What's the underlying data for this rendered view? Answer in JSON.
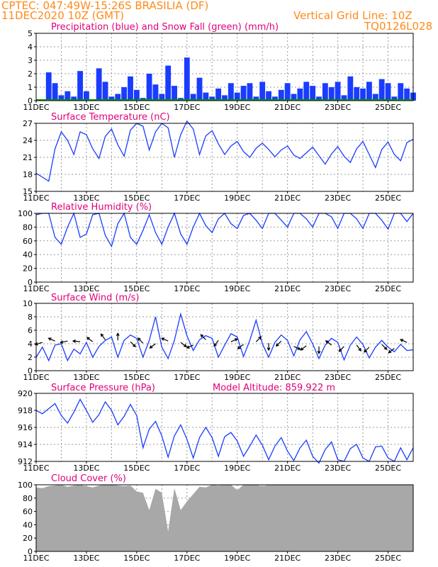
{
  "header": {
    "line1_left": "CPTEC:   047:49W-15:26S   BRASILIA (DF)",
    "line2_left": "11DEC2020 10Z (GMT)",
    "line2_right": "Vertical Grid Line: 10Z",
    "line3_right": "TQ0126L028"
  },
  "colors": {
    "header": "#ff8a1a",
    "title": "#e0007a",
    "series": "#1a3cff",
    "cloud": "#a8a8a8",
    "snow": "#00a000",
    "grid": "#9a9a9a"
  },
  "x_tick_labels": [
    "11DEC",
    "13DEC",
    "15DEC",
    "17DEC",
    "19DEC",
    "21DEC",
    "23DEC",
    "25DEC"
  ],
  "chart_data": [
    {
      "type": "bar",
      "title": "Precipitation (blue) and Snow Fall (green) (mm/h)",
      "ylim": [
        0,
        5
      ],
      "yticks": [
        "0",
        "1",
        "2",
        "3",
        "4",
        "5"
      ],
      "x_days": [
        0.0,
        0.25,
        0.5,
        0.75,
        1.0,
        1.25,
        1.5,
        1.75,
        2.0,
        2.25,
        2.5,
        2.75,
        3.0,
        3.25,
        3.5,
        3.75,
        4.0,
        4.25,
        4.5,
        4.75,
        5.0,
        5.25,
        5.5,
        5.75,
        6.0,
        6.25,
        6.5,
        6.75,
        7.0,
        7.25,
        7.5,
        7.75,
        8.0,
        8.25,
        8.5,
        8.75,
        9.0,
        9.25,
        9.5,
        9.75,
        10.0,
        10.25,
        10.5,
        10.75,
        11.0,
        11.25,
        11.5,
        11.75,
        12.0,
        12.25,
        12.5,
        12.75,
        13.0,
        13.25,
        13.5,
        13.75,
        14.0,
        14.25,
        14.5,
        14.75,
        15.0
      ],
      "precip": [
        0.1,
        0.0,
        2.1,
        1.3,
        0.4,
        0.7,
        0.3,
        2.2,
        0.7,
        0.1,
        2.4,
        1.4,
        0.3,
        0.5,
        1.0,
        1.8,
        0.8,
        0.2,
        2.0,
        1.2,
        0.5,
        2.6,
        1.1,
        0.2,
        3.2,
        0.5,
        1.7,
        0.6,
        0.3,
        0.9,
        0.4,
        1.3,
        0.6,
        1.1,
        1.3,
        0.3,
        1.4,
        0.7,
        0.3,
        0.8,
        1.3,
        0.5,
        0.9,
        1.4,
        1.1,
        0.3,
        1.3,
        1.0,
        1.4,
        0.4,
        1.8,
        1.0,
        0.9,
        1.4,
        0.5,
        1.6,
        1.3,
        0.3,
        1.3,
        0.9,
        0.6
      ],
      "snow": [
        0,
        0,
        0,
        0,
        0,
        0,
        0,
        0,
        0,
        0,
        0,
        0,
        0,
        0,
        0,
        0,
        0,
        0,
        0,
        0,
        0,
        0,
        0,
        0,
        0,
        0,
        0,
        0,
        0,
        0,
        0,
        0,
        0,
        0,
        0,
        0,
        0,
        0,
        0,
        0,
        0,
        0,
        0,
        0,
        0,
        0,
        0,
        0,
        0,
        0,
        0,
        0,
        0,
        0,
        0,
        0,
        0,
        0,
        0,
        0,
        0
      ]
    },
    {
      "type": "line",
      "title": "Surface Temperature (nC)",
      "ylim": [
        15,
        27
      ],
      "yticks": [
        "15",
        "18",
        "21",
        "24",
        "27"
      ],
      "x_days": [
        0.0,
        0.25,
        0.5,
        0.75,
        1.0,
        1.25,
        1.5,
        1.75,
        2.0,
        2.25,
        2.5,
        2.75,
        3.0,
        3.25,
        3.5,
        3.75,
        4.0,
        4.25,
        4.5,
        4.75,
        5.0,
        5.25,
        5.5,
        5.75,
        6.0,
        6.25,
        6.5,
        6.75,
        7.0,
        7.25,
        7.5,
        7.75,
        8.0,
        8.25,
        8.5,
        8.75,
        9.0,
        9.25,
        9.5,
        9.75,
        10.0,
        10.25,
        10.5,
        10.75,
        11.0,
        11.25,
        11.5,
        11.75,
        12.0,
        12.25,
        12.5,
        12.75,
        13.0,
        13.25,
        13.5,
        13.75,
        14.0,
        14.25,
        14.5,
        14.75,
        15.0
      ],
      "values": [
        18.2,
        17.5,
        16.8,
        22.5,
        25.5,
        24.0,
        21.5,
        25.5,
        25.0,
        22.5,
        20.8,
        24.7,
        26.0,
        23.2,
        21.2,
        25.8,
        27.0,
        26.5,
        22.3,
        25.5,
        27.0,
        26.2,
        21.0,
        25.0,
        27.4,
        26.0,
        21.5,
        24.8,
        25.7,
        23.4,
        21.5,
        23.0,
        23.8,
        22.0,
        21.0,
        22.6,
        23.5,
        22.4,
        21.1,
        22.3,
        23.0,
        21.4,
        20.8,
        21.8,
        22.8,
        21.3,
        19.8,
        21.6,
        22.9,
        21.2,
        20.1,
        22.5,
        23.8,
        21.5,
        19.2,
        22.4,
        23.7,
        21.5,
        20.4,
        23.6,
        24.2
      ]
    },
    {
      "type": "line",
      "title": "Relative Humidity (%)",
      "ylim": [
        0,
        100
      ],
      "yticks": [
        "0",
        "20",
        "40",
        "60",
        "80",
        "100"
      ],
      "x_days": [
        0.0,
        0.25,
        0.5,
        0.75,
        1.0,
        1.25,
        1.5,
        1.75,
        2.0,
        2.25,
        2.5,
        2.75,
        3.0,
        3.25,
        3.5,
        3.75,
        4.0,
        4.25,
        4.5,
        4.75,
        5.0,
        5.25,
        5.5,
        5.75,
        6.0,
        6.25,
        6.5,
        6.75,
        7.0,
        7.25,
        7.5,
        7.75,
        8.0,
        8.25,
        8.5,
        8.75,
        9.0,
        9.25,
        9.5,
        9.75,
        10.0,
        10.25,
        10.5,
        10.75,
        11.0,
        11.25,
        11.5,
        11.75,
        12.0,
        12.25,
        12.5,
        12.75,
        13.0,
        13.25,
        13.5,
        13.75,
        14.0,
        14.25,
        14.5,
        14.75,
        15.0
      ],
      "values": [
        98,
        100,
        100,
        65,
        55,
        80,
        100,
        65,
        70,
        98,
        100,
        68,
        52,
        85,
        100,
        65,
        55,
        75,
        98,
        72,
        55,
        80,
        100,
        70,
        55,
        80,
        100,
        82,
        72,
        92,
        100,
        85,
        78,
        97,
        100,
        90,
        78,
        100,
        100,
        90,
        80,
        100,
        100,
        92,
        80,
        100,
        100,
        95,
        78,
        100,
        100,
        92,
        78,
        100,
        100,
        90,
        77,
        100,
        100,
        88,
        100
      ]
    },
    {
      "type": "line",
      "title": "Surface Wind (m/s)",
      "ylim": [
        0,
        10
      ],
      "yticks": [
        "0",
        "2",
        "4",
        "6",
        "8",
        "10"
      ],
      "x_days": [
        0.0,
        0.25,
        0.5,
        0.75,
        1.0,
        1.25,
        1.5,
        1.75,
        2.0,
        2.25,
        2.5,
        2.75,
        3.0,
        3.25,
        3.5,
        3.75,
        4.0,
        4.25,
        4.5,
        4.75,
        5.0,
        5.25,
        5.5,
        5.75,
        6.0,
        6.25,
        6.5,
        6.75,
        7.0,
        7.25,
        7.5,
        7.75,
        8.0,
        8.25,
        8.5,
        8.75,
        9.0,
        9.25,
        9.5,
        9.75,
        10.0,
        10.25,
        10.5,
        10.75,
        11.0,
        11.25,
        11.5,
        11.75,
        12.0,
        12.25,
        12.5,
        12.75,
        13.0,
        13.25,
        13.5,
        13.75,
        14.0,
        14.25,
        14.5,
        14.75,
        15.0
      ],
      "values": [
        2.0,
        3.5,
        1.5,
        3.8,
        4.0,
        1.5,
        3.2,
        2.5,
        4.2,
        2.0,
        3.6,
        4.5,
        5.0,
        2.0,
        4.5,
        5.3,
        4.8,
        2.0,
        4.5,
        8.0,
        3.5,
        1.8,
        4.5,
        8.4,
        5.2,
        3.0,
        4.6,
        5.2,
        4.8,
        2.0,
        3.8,
        5.5,
        5.0,
        2.1,
        4.5,
        7.5,
        4.0,
        2.0,
        4.2,
        5.3,
        4.5,
        2.2,
        4.6,
        5.8,
        4.0,
        1.8,
        3.8,
        4.8,
        4.2,
        1.6,
        3.8,
        5.0,
        3.9,
        1.9,
        3.5,
        4.5,
        3.5,
        2.8,
        3.9,
        3.0,
        3.1
      ],
      "arrows": [
        {
          "day": 0.25,
          "speed": 4.2,
          "dx": -1.0,
          "dy": 0.3
        },
        {
          "day": 0.75,
          "speed": 4.4,
          "dx": -0.9,
          "dy": -0.4
        },
        {
          "day": 1.25,
          "speed": 4.4,
          "dx": -1.0,
          "dy": 0.2
        },
        {
          "day": 1.75,
          "speed": 4.3,
          "dx": -1.0,
          "dy": -0.1
        },
        {
          "day": 2.25,
          "speed": 4.3,
          "dx": -0.8,
          "dy": -0.6
        },
        {
          "day": 2.75,
          "speed": 4.6,
          "dx": -0.6,
          "dy": -0.8
        },
        {
          "day": 3.25,
          "speed": 4.5,
          "dx": 0.0,
          "dy": -1.0
        },
        {
          "day": 3.75,
          "speed": 4.3,
          "dx": 0.7,
          "dy": 0.7
        },
        {
          "day": 4.25,
          "speed": 4.1,
          "dx": -0.7,
          "dy": -0.7
        },
        {
          "day": 4.75,
          "speed": 4.0,
          "dx": -0.8,
          "dy": 0.6
        },
        {
          "day": 5.25,
          "speed": 4.4,
          "dx": -0.9,
          "dy": -0.4
        },
        {
          "day": 5.75,
          "speed": 4.2,
          "dx": 0.8,
          "dy": 0.6
        },
        {
          "day": 6.25,
          "speed": 3.8,
          "dx": -0.9,
          "dy": 0.4
        },
        {
          "day": 6.75,
          "speed": 4.6,
          "dx": -0.7,
          "dy": -0.7
        },
        {
          "day": 7.25,
          "speed": 4.5,
          "dx": -0.6,
          "dy": 0.8
        },
        {
          "day": 7.75,
          "speed": 4.3,
          "dx": 0.9,
          "dy": -0.4
        },
        {
          "day": 8.25,
          "speed": 3.9,
          "dx": -0.8,
          "dy": 0.6
        },
        {
          "day": 8.75,
          "speed": 4.3,
          "dx": 0.7,
          "dy": -0.7
        },
        {
          "day": 9.25,
          "speed": 4.1,
          "dx": 0.0,
          "dy": 1.0
        },
        {
          "day": 9.75,
          "speed": 4.4,
          "dx": -0.7,
          "dy": 0.7
        },
        {
          "day": 10.25,
          "speed": 3.6,
          "dx": 0.9,
          "dy": 0.4
        },
        {
          "day": 10.75,
          "speed": 3.7,
          "dx": -0.8,
          "dy": 0.6
        },
        {
          "day": 11.25,
          "speed": 3.6,
          "dx": 0.0,
          "dy": 1.0
        },
        {
          "day": 11.75,
          "speed": 3.8,
          "dx": -0.8,
          "dy": -0.6
        },
        {
          "day": 12.25,
          "speed": 3.6,
          "dx": -0.7,
          "dy": 0.7
        },
        {
          "day": 12.75,
          "speed": 3.8,
          "dx": 0.6,
          "dy": 0.8
        },
        {
          "day": 13.25,
          "speed": 3.5,
          "dx": -0.7,
          "dy": 0.7
        },
        {
          "day": 13.75,
          "speed": 3.9,
          "dx": 0.7,
          "dy": 0.7
        },
        {
          "day": 14.25,
          "speed": 3.3,
          "dx": -0.8,
          "dy": 0.6
        },
        {
          "day": 14.75,
          "speed": 4.2,
          "dx": -0.9,
          "dy": -0.4
        }
      ]
    },
    {
      "type": "line",
      "title": "Surface Pressure (hPa)",
      "annotation": "Model Altitude: 859.922  m",
      "ylim": [
        912,
        920
      ],
      "yticks": [
        "912",
        "914",
        "916",
        "918",
        "920"
      ],
      "x_days": [
        0.0,
        0.25,
        0.5,
        0.75,
        1.0,
        1.25,
        1.5,
        1.75,
        2.0,
        2.25,
        2.5,
        2.75,
        3.0,
        3.25,
        3.5,
        3.75,
        4.0,
        4.25,
        4.5,
        4.75,
        5.0,
        5.25,
        5.5,
        5.75,
        6.0,
        6.25,
        6.5,
        6.75,
        7.0,
        7.25,
        7.5,
        7.75,
        8.0,
        8.25,
        8.5,
        8.75,
        9.0,
        9.25,
        9.5,
        9.75,
        10.0,
        10.25,
        10.5,
        10.75,
        11.0,
        11.25,
        11.5,
        11.75,
        12.0,
        12.25,
        12.5,
        12.75,
        13.0,
        13.25,
        13.5,
        13.75,
        14.0,
        14.25,
        14.5,
        14.75,
        15.0
      ],
      "values": [
        918.0,
        917.6,
        918.2,
        918.8,
        917.4,
        916.5,
        917.8,
        919.3,
        918.0,
        916.6,
        917.5,
        919.0,
        918.0,
        916.3,
        917.3,
        918.7,
        917.4,
        913.6,
        915.8,
        916.7,
        915.0,
        912.5,
        915.0,
        916.3,
        914.6,
        912.4,
        914.8,
        916.0,
        914.8,
        912.6,
        914.9,
        915.4,
        914.4,
        912.6,
        913.8,
        915.1,
        913.9,
        912.2,
        913.8,
        914.8,
        913.2,
        912.1,
        913.6,
        914.5,
        912.6,
        911.8,
        913.4,
        914.3,
        912.2,
        912.0,
        913.5,
        914.0,
        912.4,
        912.0,
        913.7,
        913.8,
        912.4,
        912.0,
        913.6,
        912.2,
        913.6
      ]
    },
    {
      "type": "area",
      "title": "Cloud Cover (%)",
      "ylim": [
        0,
        100
      ],
      "yticks": [
        "0",
        "20",
        "40",
        "60",
        "80",
        "100"
      ],
      "x_days": [
        0.0,
        0.25,
        0.5,
        0.75,
        1.0,
        1.25,
        1.5,
        1.75,
        2.0,
        2.25,
        2.5,
        2.75,
        3.0,
        3.25,
        3.5,
        3.75,
        4.0,
        4.25,
        4.5,
        4.75,
        5.0,
        5.25,
        5.5,
        5.75,
        6.0,
        6.25,
        6.5,
        6.75,
        7.0,
        7.25,
        7.5,
        7.75,
        8.0,
        8.25,
        8.5,
        8.75,
        9.0,
        9.25,
        9.5,
        9.75,
        10.0,
        10.25,
        10.5,
        10.75,
        11.0,
        11.25,
        11.5,
        11.75,
        12.0,
        12.25,
        12.5,
        12.75,
        13.0,
        13.25,
        13.5,
        13.75,
        14.0,
        14.25,
        14.5,
        14.75,
        15.0
      ],
      "values": [
        96,
        95,
        98,
        99,
        100,
        97,
        99,
        100,
        98,
        96,
        99,
        100,
        100,
        99,
        98,
        99,
        90,
        88,
        62,
        94,
        88,
        30,
        95,
        62,
        75,
        86,
        97,
        96,
        100,
        99,
        100,
        100,
        92,
        100,
        100,
        100,
        98,
        100,
        100,
        100,
        100,
        100,
        100,
        100,
        100,
        100,
        100,
        100,
        100,
        100,
        100,
        100,
        100,
        100,
        100,
        100,
        100,
        100,
        100,
        100,
        100
      ]
    }
  ]
}
